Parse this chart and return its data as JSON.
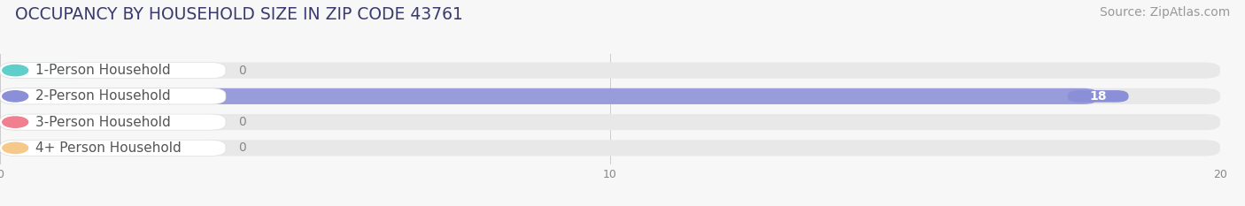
{
  "title": "OCCUPANCY BY HOUSEHOLD SIZE IN ZIP CODE 43761",
  "source": "Source: ZipAtlas.com",
  "categories": [
    "1-Person Household",
    "2-Person Household",
    "3-Person Household",
    "4+ Person Household"
  ],
  "values": [
    0,
    18,
    0,
    0
  ],
  "bar_colors": [
    "#5ecfca",
    "#8b8fd8",
    "#f08090",
    "#f5c98a"
  ],
  "label_bg_colors": [
    "#eaf7f6",
    "#eceaf8",
    "#fce8ea",
    "#fdf3e7"
  ],
  "row_bg_color": "#f0f0f0",
  "bar_bg_color": "#e8e8e8",
  "xlim": [
    0,
    20
  ],
  "xticks": [
    0,
    10,
    20
  ],
  "bg_color": "#f7f7f7",
  "title_color": "#3a3a6e",
  "source_color": "#999999",
  "label_color": "#555555",
  "value_color_inside": "#ffffff",
  "value_color_outside": "#888888",
  "title_fontsize": 13.5,
  "source_fontsize": 10,
  "label_fontsize": 11,
  "value_fontsize": 10
}
